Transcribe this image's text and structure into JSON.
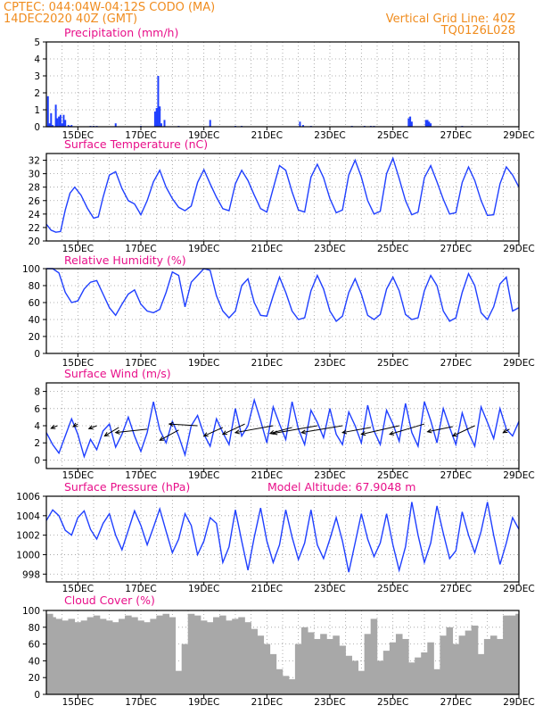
{
  "header": {
    "line1": "CPTEC:   044:04W-04:12S   CODO (MA)",
    "line2": "14DEC2020 40Z (GMT)",
    "grid_line": "Vertical Grid Line: 40Z",
    "code": "TQ0126L028"
  },
  "colors": {
    "header": "#f08c1e",
    "title": "#e8108a",
    "series": "#1f3fff",
    "cloud": "#a8a8a8",
    "grid": "#9a9a9a"
  },
  "chart_data": [
    {
      "id": "precip",
      "type": "bar",
      "title": "Precipitation (mm/h)",
      "ylim": [
        0,
        5
      ],
      "yticks": [
        0,
        1,
        2,
        3,
        4,
        5
      ],
      "xticks": [
        "15DEC",
        "17DEC",
        "19DEC",
        "21DEC",
        "23DEC",
        "25DEC",
        "27DEC",
        "29DEC"
      ],
      "x_unit": "days after 14DEC 00Z",
      "x": [
        0.05,
        0.1,
        0.15,
        0.2,
        0.3,
        0.35,
        0.4,
        0.45,
        0.5,
        0.55,
        0.6,
        0.7,
        0.75,
        0.8,
        1.4,
        1.5,
        1.6,
        2.2,
        3.0,
        3.45,
        3.5,
        3.55,
        3.6,
        3.65,
        3.75,
        4.2,
        5.2,
        6.0,
        6.2,
        8.05,
        8.15,
        8.4,
        9.7,
        10.1,
        10.3,
        10.4,
        11.5,
        11.55,
        11.6,
        12.05,
        12.1,
        12.15,
        12.2,
        13.2
      ],
      "values": [
        1.8,
        0.2,
        0.8,
        0.1,
        1.3,
        0.5,
        0.6,
        0.7,
        0.2,
        0.7,
        0.4,
        0.1,
        0.05,
        0.1,
        0.05,
        0.05,
        0.05,
        0.2,
        0.05,
        0.9,
        1.1,
        3.0,
        1.2,
        0.2,
        0.4,
        0.05,
        0.4,
        0.05,
        0.05,
        0.3,
        0.1,
        0.05,
        0.05,
        0.05,
        0.05,
        0.05,
        0.5,
        0.6,
        0.3,
        0.4,
        0.4,
        0.3,
        0.2,
        0.05
      ]
    },
    {
      "id": "temp",
      "type": "line",
      "title": "Surface Temperature (nC)",
      "ylim": [
        20,
        33
      ],
      "yticks": [
        20,
        22,
        24,
        26,
        28,
        30,
        32
      ],
      "xticks": [
        "15DEC",
        "17DEC",
        "19DEC",
        "21DEC",
        "23DEC",
        "25DEC",
        "27DEC",
        "29DEC"
      ],
      "x_unit": "days after 14DEC 00Z",
      "x": [
        0,
        0.15,
        0.3,
        0.45,
        0.6,
        0.75,
        0.9,
        1.1,
        1.3,
        1.5,
        1.65,
        1.8,
        2.0,
        2.2,
        2.4,
        2.6,
        2.8,
        3.0,
        3.2,
        3.4,
        3.6,
        3.8,
        4.0,
        4.2,
        4.4,
        4.6,
        4.8,
        5.0,
        5.2,
        5.4,
        5.6,
        5.8,
        6.0,
        6.2,
        6.4,
        6.6,
        6.8,
        7.0,
        7.2,
        7.4,
        7.6,
        7.8,
        8.0,
        8.2,
        8.4,
        8.6,
        8.8,
        9.0,
        9.2,
        9.4,
        9.6,
        9.8,
        10.0,
        10.2,
        10.4,
        10.6,
        10.8,
        11.0,
        11.2,
        11.4,
        11.6,
        11.8,
        12.0,
        12.2,
        12.4,
        12.6,
        12.8,
        13.0,
        13.2,
        13.4,
        13.6,
        13.8,
        14.0,
        14.2,
        14.4,
        14.6,
        14.8,
        15.0
      ],
      "values": [
        22.5,
        21.6,
        21.3,
        21.4,
        24.6,
        27.1,
        28.0,
        26.8,
        24.9,
        23.4,
        23.6,
        26.5,
        29.8,
        30.3,
        27.8,
        26.0,
        25.5,
        23.9,
        26.0,
        28.8,
        30.5,
        28.0,
        26.3,
        25.0,
        24.5,
        25.2,
        28.7,
        30.6,
        28.5,
        26.5,
        24.8,
        24.5,
        28.5,
        30.5,
        29.0,
        26.8,
        24.8,
        24.3,
        27.8,
        31.2,
        30.5,
        27.3,
        24.6,
        24.3,
        29.5,
        31.4,
        29.4,
        26.3,
        24.2,
        24.6,
        29.8,
        32.0,
        29.5,
        26.0,
        24.0,
        24.4,
        30.0,
        32.3,
        29.3,
        26.0,
        23.9,
        24.3,
        29.4,
        31.2,
        28.8,
        26.2,
        24.0,
        24.2,
        28.7,
        31.0,
        29.0,
        26.0,
        23.8,
        23.9,
        28.5,
        31.0,
        29.8,
        28.0
      ]
    },
    {
      "id": "rh",
      "type": "line",
      "title": "Relative Humidity (%)",
      "ylim": [
        0,
        100
      ],
      "yticks": [
        0,
        20,
        40,
        60,
        80,
        100
      ],
      "xticks": [
        "15DEC",
        "17DEC",
        "19DEC",
        "21DEC",
        "23DEC",
        "25DEC",
        "27DEC",
        "29DEC"
      ],
      "x_unit": "days after 14DEC 00Z",
      "x": [
        0,
        0.2,
        0.4,
        0.6,
        0.8,
        1.0,
        1.2,
        1.4,
        1.6,
        1.8,
        2.0,
        2.2,
        2.4,
        2.6,
        2.8,
        3.0,
        3.2,
        3.4,
        3.6,
        3.8,
        4.0,
        4.2,
        4.4,
        4.6,
        4.8,
        5.0,
        5.2,
        5.4,
        5.6,
        5.8,
        6.0,
        6.2,
        6.4,
        6.6,
        6.8,
        7.0,
        7.2,
        7.4,
        7.6,
        7.8,
        8.0,
        8.2,
        8.4,
        8.6,
        8.8,
        9.0,
        9.2,
        9.4,
        9.6,
        9.8,
        10.0,
        10.2,
        10.4,
        10.6,
        10.8,
        11.0,
        11.2,
        11.4,
        11.6,
        11.8,
        12.0,
        12.2,
        12.4,
        12.6,
        12.8,
        13.0,
        13.2,
        13.4,
        13.6,
        13.8,
        14.0,
        14.2,
        14.4,
        14.6,
        14.8,
        15.0
      ],
      "values": [
        100,
        100,
        95,
        72,
        60,
        62,
        76,
        84,
        86,
        70,
        54,
        45,
        58,
        70,
        75,
        58,
        50,
        48,
        52,
        72,
        96,
        92,
        55,
        84,
        92,
        100,
        98,
        68,
        50,
        42,
        50,
        80,
        88,
        60,
        45,
        44,
        68,
        90,
        72,
        50,
        40,
        42,
        74,
        92,
        76,
        50,
        38,
        44,
        72,
        88,
        70,
        45,
        40,
        46,
        76,
        90,
        74,
        46,
        40,
        42,
        74,
        92,
        80,
        50,
        38,
        42,
        72,
        94,
        80,
        48,
        40,
        55,
        82,
        90,
        50,
        54
      ]
    },
    {
      "id": "wind",
      "type": "line",
      "title": "Surface Wind (m/s)",
      "ylim": [
        -1,
        9
      ],
      "yticks": [
        0,
        2,
        4,
        6,
        8
      ],
      "xticks": [
        "15DEC",
        "17DEC",
        "19DEC",
        "21DEC",
        "23DEC",
        "25DEC",
        "27DEC",
        "29DEC"
      ],
      "x_unit": "days after 14DEC 00Z",
      "x": [
        0,
        0.2,
        0.4,
        0.6,
        0.8,
        1.0,
        1.2,
        1.4,
        1.6,
        1.8,
        2.0,
        2.2,
        2.4,
        2.6,
        2.8,
        3.0,
        3.2,
        3.4,
        3.6,
        3.8,
        4.0,
        4.2,
        4.4,
        4.6,
        4.8,
        5.0,
        5.2,
        5.4,
        5.6,
        5.8,
        6.0,
        6.2,
        6.4,
        6.6,
        6.8,
        7.0,
        7.2,
        7.4,
        7.6,
        7.8,
        8.0,
        8.2,
        8.4,
        8.6,
        8.8,
        9.0,
        9.2,
        9.4,
        9.6,
        9.8,
        10.0,
        10.2,
        10.4,
        10.6,
        10.8,
        11.0,
        11.2,
        11.4,
        11.6,
        11.8,
        12.0,
        12.2,
        12.4,
        12.6,
        12.8,
        13.0,
        13.2,
        13.4,
        13.6,
        13.8,
        14.0,
        14.2,
        14.4,
        14.6,
        14.8,
        15.0
      ],
      "values": [
        3.2,
        1.8,
        0.8,
        2.8,
        4.8,
        3.0,
        0.4,
        2.4,
        1.2,
        3.4,
        4.2,
        1.5,
        3.0,
        5.0,
        2.8,
        1.0,
        3.2,
        6.8,
        3.5,
        2.0,
        4.5,
        2.8,
        0.6,
        4.0,
        5.2,
        3.0,
        1.6,
        4.8,
        3.2,
        1.8,
        6.0,
        2.8,
        4.0,
        7.0,
        4.6,
        2.0,
        6.2,
        4.2,
        2.4,
        6.8,
        3.6,
        1.8,
        5.8,
        4.4,
        2.6,
        6.0,
        3.0,
        1.8,
        5.6,
        4.0,
        2.0,
        6.4,
        3.4,
        1.8,
        5.8,
        4.2,
        2.2,
        6.6,
        3.2,
        1.6,
        6.8,
        4.6,
        2.0,
        6.0,
        3.8,
        1.8,
        5.5,
        3.2,
        1.6,
        6.2,
        4.4,
        2.5,
        6.0,
        3.6,
        2.8,
        4.5
      ],
      "arrows": [
        {
          "x": 0.35,
          "y": 4.0,
          "dx": -0.2,
          "dy": -0.3
        },
        {
          "x": 1.0,
          "y": 4.2,
          "dx": -0.15,
          "dy": -0.3
        },
        {
          "x": 1.6,
          "y": 4.0,
          "dx": -0.25,
          "dy": -0.35
        },
        {
          "x": 2.3,
          "y": 3.8,
          "dx": -0.45,
          "dy": -1.0
        },
        {
          "x": 3.2,
          "y": 3.6,
          "dx": -1.0,
          "dy": -0.4
        },
        {
          "x": 4.2,
          "y": 3.5,
          "dx": -0.6,
          "dy": -1.2
        },
        {
          "x": 4.8,
          "y": 4.0,
          "dx": -0.9,
          "dy": 0.2
        },
        {
          "x": 5.6,
          "y": 3.8,
          "dx": -0.6,
          "dy": -1.0
        },
        {
          "x": 6.3,
          "y": 4.2,
          "dx": -0.7,
          "dy": -1.2
        },
        {
          "x": 7.2,
          "y": 4.0,
          "dx": -1.2,
          "dy": -0.8
        },
        {
          "x": 7.8,
          "y": 3.8,
          "dx": -0.7,
          "dy": -0.7
        },
        {
          "x": 8.6,
          "y": 4.0,
          "dx": -1.4,
          "dy": -0.9
        },
        {
          "x": 9.4,
          "y": 4.0,
          "dx": -1.3,
          "dy": -0.8
        },
        {
          "x": 10.3,
          "y": 3.8,
          "dx": -0.9,
          "dy": -0.6
        },
        {
          "x": 11.2,
          "y": 4.0,
          "dx": -1.2,
          "dy": -1.0
        },
        {
          "x": 12.0,
          "y": 4.2,
          "dx": -1.1,
          "dy": -1.2
        },
        {
          "x": 12.9,
          "y": 3.9,
          "dx": -0.8,
          "dy": -0.6
        },
        {
          "x": 13.6,
          "y": 4.0,
          "dx": -0.7,
          "dy": -1.2
        },
        {
          "x": 14.7,
          "y": 3.6,
          "dx": -0.2,
          "dy": -0.4
        }
      ]
    },
    {
      "id": "pres",
      "type": "line",
      "title": "Surface Pressure (hPa)",
      "annotation": "Model Altitude: 67.9048 m",
      "ylim": [
        997.2,
        1006
      ],
      "yticks": [
        998,
        1000,
        1002,
        1004,
        1006
      ],
      "xticks": [
        "15DEC",
        "17DEC",
        "19DEC",
        "21DEC",
        "23DEC",
        "25DEC",
        "27DEC",
        "29DEC"
      ],
      "x_unit": "days after 14DEC 00Z",
      "x": [
        0,
        0.2,
        0.4,
        0.6,
        0.8,
        1.0,
        1.2,
        1.4,
        1.6,
        1.8,
        2.0,
        2.2,
        2.4,
        2.6,
        2.8,
        3.0,
        3.2,
        3.4,
        3.6,
        3.8,
        4.0,
        4.2,
        4.4,
        4.6,
        4.8,
        5.0,
        5.2,
        5.4,
        5.6,
        5.8,
        6.0,
        6.2,
        6.4,
        6.6,
        6.8,
        7.0,
        7.2,
        7.4,
        7.6,
        7.8,
        8.0,
        8.2,
        8.4,
        8.6,
        8.8,
        9.0,
        9.2,
        9.4,
        9.6,
        9.8,
        10.0,
        10.2,
        10.4,
        10.6,
        10.8,
        11.0,
        11.2,
        11.4,
        11.6,
        11.8,
        12.0,
        12.2,
        12.4,
        12.6,
        12.8,
        13.0,
        13.2,
        13.4,
        13.6,
        13.8,
        14.0,
        14.2,
        14.4,
        14.6,
        14.8,
        15.0
      ],
      "values": [
        1003.5,
        1004.6,
        1004.0,
        1002.5,
        1002.0,
        1003.8,
        1004.5,
        1002.6,
        1001.6,
        1003.2,
        1004.2,
        1002.0,
        1000.5,
        1002.5,
        1004.5,
        1003.0,
        1001.0,
        1002.8,
        1004.7,
        1002.4,
        1000.2,
        1001.6,
        1004.2,
        1003.0,
        1000.0,
        1001.4,
        1003.8,
        1003.2,
        999.2,
        1000.8,
        1004.6,
        1001.4,
        998.4,
        1001.8,
        1004.8,
        1001.4,
        999.2,
        1001.0,
        1004.6,
        1001.8,
        999.5,
        1001.2,
        1004.6,
        1001.0,
        999.6,
        1001.6,
        1003.8,
        1001.4,
        998.2,
        1001.2,
        1004.2,
        1001.6,
        999.8,
        1001.2,
        1004.2,
        1001.0,
        998.4,
        1000.8,
        1005.4,
        1002.0,
        999.2,
        1001.2,
        1005.0,
        1002.2,
        999.6,
        1000.4,
        1004.4,
        1002.0,
        1000.2,
        1002.4,
        1005.4,
        1002.0,
        999.0,
        1001.2,
        1003.8,
        1002.6
      ]
    },
    {
      "id": "cloud",
      "type": "area",
      "title": "Cloud Cover (%)",
      "ylim": [
        0,
        100
      ],
      "yticks": [
        0,
        20,
        40,
        60,
        80,
        100
      ],
      "xticks": [
        "15DEC",
        "17DEC",
        "19DEC",
        "21DEC",
        "23DEC",
        "25DEC",
        "27DEC",
        "29DEC"
      ],
      "x_unit": "days after 14DEC 00Z",
      "x": [
        0,
        0.2,
        0.4,
        0.6,
        0.8,
        1.0,
        1.2,
        1.4,
        1.6,
        1.8,
        2.0,
        2.2,
        2.4,
        2.6,
        2.8,
        3.0,
        3.2,
        3.4,
        3.6,
        3.8,
        4.0,
        4.2,
        4.4,
        4.6,
        4.8,
        5.0,
        5.2,
        5.4,
        5.6,
        5.8,
        6.0,
        6.2,
        6.4,
        6.6,
        6.8,
        7.0,
        7.2,
        7.4,
        7.6,
        7.8,
        8.0,
        8.2,
        8.4,
        8.6,
        8.8,
        9.0,
        9.2,
        9.4,
        9.6,
        9.8,
        10.0,
        10.2,
        10.4,
        10.6,
        10.8,
        11.0,
        11.2,
        11.4,
        11.6,
        11.8,
        12.0,
        12.2,
        12.4,
        12.6,
        12.8,
        13.0,
        13.2,
        13.4,
        13.6,
        13.8,
        14.0,
        14.2,
        14.4,
        14.6,
        14.8,
        15.0
      ],
      "values": [
        96,
        92,
        90,
        88,
        90,
        86,
        88,
        92,
        94,
        90,
        88,
        86,
        90,
        94,
        92,
        88,
        86,
        90,
        94,
        96,
        92,
        28,
        60,
        96,
        94,
        88,
        86,
        92,
        94,
        88,
        90,
        92,
        86,
        78,
        70,
        60,
        48,
        30,
        22,
        18,
        60,
        80,
        74,
        66,
        72,
        66,
        70,
        58,
        46,
        40,
        28,
        72,
        90,
        40,
        52,
        62,
        72,
        66,
        38,
        44,
        50,
        62,
        30,
        70,
        80,
        60,
        70,
        76,
        82,
        48,
        66,
        70,
        66,
        94,
        94,
        96
      ]
    }
  ]
}
